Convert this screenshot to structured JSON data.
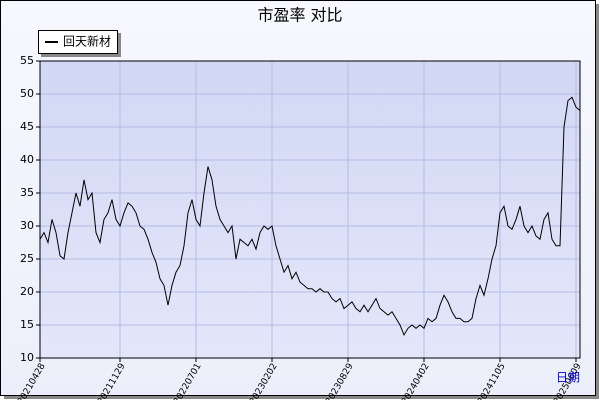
{
  "chart_data": {
    "type": "line",
    "title": "市盈率  对比",
    "x_label": "日期",
    "series": [
      {
        "name": "回天新材",
        "color": "#000000",
        "values": [
          28,
          29,
          27.5,
          31,
          29,
          25.5,
          25,
          29,
          32,
          35,
          33,
          37,
          34,
          35,
          29,
          27.5,
          31,
          32,
          34,
          31,
          30,
          32,
          33.5,
          33,
          32,
          30,
          29.5,
          28,
          26,
          24.5,
          22,
          21,
          18,
          21,
          23,
          24,
          27,
          32,
          34,
          31,
          30,
          35,
          39,
          37,
          33,
          31,
          30,
          29,
          30,
          25,
          28,
          27.5,
          27,
          28,
          26.5,
          29,
          30,
          29.5,
          30,
          27,
          25,
          23,
          24,
          22,
          23,
          21.5,
          21,
          20.5,
          20.5,
          20,
          20.5,
          20,
          20,
          19,
          18.5,
          19,
          17.5,
          18,
          18.5,
          17.5,
          17,
          18,
          17,
          18,
          19,
          17.5,
          17,
          16.5,
          17,
          16,
          15,
          13.5,
          14.5,
          15,
          14.5,
          15,
          14.5,
          16,
          15.5,
          16,
          18,
          19.5,
          18.5,
          17,
          16,
          16,
          15.5,
          15.5,
          16,
          19,
          21,
          19.5,
          22,
          25,
          27,
          32,
          33,
          30,
          29.5,
          31,
          33,
          30,
          29,
          30,
          28.5,
          28,
          31,
          32,
          28,
          27,
          27,
          45,
          49,
          49.5,
          48,
          47.5
        ]
      }
    ],
    "xlim": [
      0,
      135
    ],
    "xticks": [
      {
        "value": 0,
        "label": "20210428"
      },
      {
        "value": 20,
        "label": "20211129"
      },
      {
        "value": 39,
        "label": "20220701"
      },
      {
        "value": 58,
        "label": "20230202"
      },
      {
        "value": 77,
        "label": "20230829"
      },
      {
        "value": 96,
        "label": "20240402"
      },
      {
        "value": 115,
        "label": "20241105"
      },
      {
        "value": 134,
        "label": "20250609"
      }
    ],
    "ylim": [
      10,
      55
    ],
    "yticks": [
      10,
      15,
      20,
      25,
      30,
      35,
      40,
      45,
      50,
      55
    ],
    "grid": true,
    "legend": "top-left"
  }
}
